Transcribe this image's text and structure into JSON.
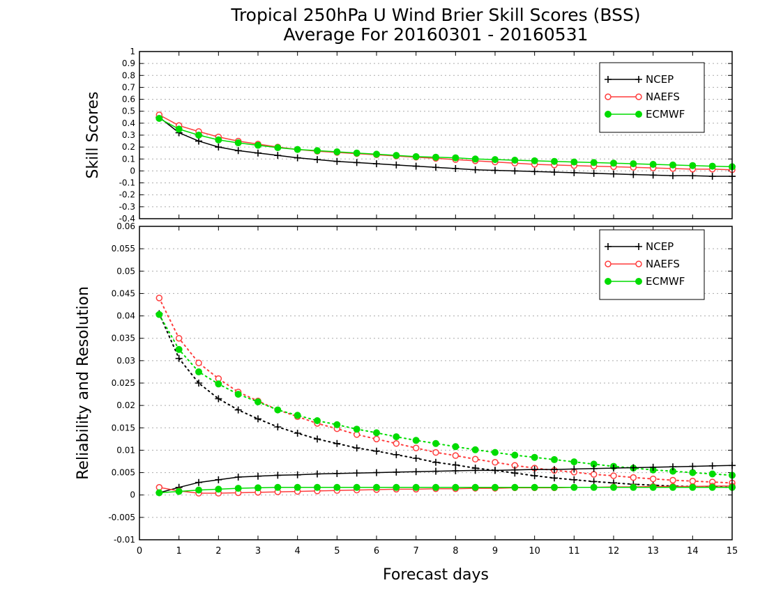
{
  "title_line1": "Tropical 250hPa U Wind Brier Skill Scores (BSS)",
  "title_line2": "Average For 20160301 - 20160531",
  "xlabel": "Forecast days",
  "x_ticks": [
    "0",
    "1",
    "2",
    "3",
    "4",
    "5",
    "6",
    "7",
    "8",
    "9",
    "10",
    "11",
    "12",
    "13",
    "14",
    "15"
  ],
  "colors": {
    "NCEP": "#000000",
    "NAEFS": "#ff3c3c",
    "ECMWF": "#00dc00",
    "grid": "#aaaaaa"
  },
  "chart_data": [
    {
      "type": "line",
      "panel": "top",
      "ylabel": "Skill Scores",
      "xlim": [
        0,
        15
      ],
      "ylim": [
        -0.4,
        1
      ],
      "y_ticks": [
        "1",
        "0.9",
        "0.8",
        "0.7",
        "0.6",
        "0.5",
        "0.4",
        "0.3",
        "0.2",
        "0.1",
        "0",
        "-0.1",
        "-0.2",
        "-0.3",
        "-0.4"
      ],
      "grid": true,
      "legend": "top-right",
      "x": [
        0.5,
        1,
        1.5,
        2,
        2.5,
        3,
        3.5,
        4,
        4.5,
        5,
        5.5,
        6,
        6.5,
        7,
        7.5,
        8,
        8.5,
        9,
        9.5,
        10,
        10.5,
        11,
        11.5,
        12,
        12.5,
        13,
        13.5,
        14,
        14.5,
        15
      ],
      "series": [
        {
          "name": "NCEP",
          "marker": "plus",
          "style": "solid",
          "values": [
            0.45,
            0.32,
            0.25,
            0.2,
            0.17,
            0.15,
            0.13,
            0.11,
            0.095,
            0.08,
            0.07,
            0.06,
            0.05,
            0.04,
            0.03,
            0.02,
            0.01,
            0.005,
            0.0,
            -0.005,
            -0.01,
            -0.015,
            -0.02,
            -0.025,
            -0.03,
            -0.035,
            -0.04,
            -0.04,
            -0.045,
            -0.045
          ]
        },
        {
          "name": "NAEFS",
          "marker": "open-circle",
          "style": "solid",
          "values": [
            0.47,
            0.38,
            0.33,
            0.285,
            0.25,
            0.225,
            0.2,
            0.18,
            0.165,
            0.155,
            0.145,
            0.135,
            0.125,
            0.115,
            0.105,
            0.095,
            0.085,
            0.075,
            0.065,
            0.055,
            0.05,
            0.045,
            0.04,
            0.035,
            0.03,
            0.025,
            0.02,
            0.015,
            0.015,
            0.01
          ]
        },
        {
          "name": "ECMWF",
          "marker": "filled-circle",
          "style": "solid",
          "values": [
            0.44,
            0.35,
            0.3,
            0.26,
            0.235,
            0.215,
            0.195,
            0.18,
            0.17,
            0.16,
            0.15,
            0.14,
            0.13,
            0.12,
            0.115,
            0.11,
            0.1,
            0.095,
            0.09,
            0.085,
            0.08,
            0.075,
            0.07,
            0.065,
            0.06,
            0.055,
            0.05,
            0.045,
            0.04,
            0.035
          ]
        }
      ]
    },
    {
      "type": "line",
      "panel": "bottom",
      "ylabel": "Reliability and Resolution",
      "xlim": [
        0,
        15
      ],
      "ylim": [
        -0.01,
        0.06
      ],
      "y_ticks": [
        "0.06",
        "0.055",
        "0.05",
        "0.045",
        "0.04",
        "0.035",
        "0.03",
        "0.025",
        "0.02",
        "0.015",
        "0.01",
        "0.005",
        "0",
        "-0.005",
        "-0.01"
      ],
      "grid": true,
      "legend": "top-right",
      "x": [
        0.5,
        1,
        1.5,
        2,
        2.5,
        3,
        3.5,
        4,
        4.5,
        5,
        5.5,
        6,
        6.5,
        7,
        7.5,
        8,
        8.5,
        9,
        9.5,
        10,
        10.5,
        11,
        11.5,
        12,
        12.5,
        13,
        13.5,
        14,
        14.5,
        15
      ],
      "series": [
        {
          "name": "NCEP",
          "quantity": "resolution",
          "marker": "plus",
          "style": "dotted",
          "values": [
            0.0405,
            0.0305,
            0.025,
            0.0215,
            0.019,
            0.017,
            0.0152,
            0.0138,
            0.0125,
            0.0115,
            0.0105,
            0.0098,
            0.009,
            0.0082,
            0.0073,
            0.0067,
            0.006,
            0.0055,
            0.0049,
            0.0043,
            0.0038,
            0.0034,
            0.003,
            0.0027,
            0.0024,
            0.0022,
            0.002,
            0.0019,
            0.0018,
            0.0017
          ]
        },
        {
          "name": "NAEFS",
          "quantity": "resolution",
          "marker": "open-circle",
          "style": "dotted",
          "values": [
            0.044,
            0.035,
            0.0295,
            0.026,
            0.023,
            0.021,
            0.019,
            0.0175,
            0.016,
            0.0148,
            0.0135,
            0.0125,
            0.0115,
            0.0105,
            0.0095,
            0.0088,
            0.008,
            0.0073,
            0.0066,
            0.006,
            0.0055,
            0.0051,
            0.0046,
            0.0043,
            0.0039,
            0.0036,
            0.0033,
            0.0031,
            0.0029,
            0.0027
          ]
        },
        {
          "name": "ECMWF",
          "quantity": "resolution",
          "marker": "filled-circle",
          "style": "dotted",
          "values": [
            0.0403,
            0.0325,
            0.0275,
            0.0248,
            0.0225,
            0.0208,
            0.019,
            0.0178,
            0.0166,
            0.0157,
            0.0147,
            0.0139,
            0.013,
            0.0122,
            0.0115,
            0.0108,
            0.0101,
            0.0095,
            0.0089,
            0.0084,
            0.0079,
            0.0074,
            0.0069,
            0.0064,
            0.006,
            0.0056,
            0.0053,
            0.005,
            0.0047,
            0.0044
          ]
        },
        {
          "name": "NCEP",
          "quantity": "reliability",
          "marker": "plus",
          "style": "solid",
          "values": [
            0.0005,
            0.0017,
            0.0028,
            0.0034,
            0.004,
            0.0042,
            0.0044,
            0.0045,
            0.0047,
            0.0048,
            0.0049,
            0.005,
            0.0051,
            0.0052,
            0.0053,
            0.0054,
            0.0055,
            0.0055,
            0.0056,
            0.0057,
            0.0057,
            0.0058,
            0.0059,
            0.006,
            0.0061,
            0.0062,
            0.0063,
            0.0064,
            0.0065,
            0.0066
          ]
        },
        {
          "name": "NAEFS",
          "quantity": "reliability",
          "marker": "open-circle",
          "style": "solid",
          "values": [
            0.0017,
            0.0009,
            0.0004,
            0.0004,
            0.0005,
            0.0006,
            0.0007,
            0.0008,
            0.0009,
            0.001,
            0.0011,
            0.0012,
            0.0013,
            0.0013,
            0.0014,
            0.0014,
            0.0015,
            0.0015,
            0.0016,
            0.0016,
            0.0016,
            0.0017,
            0.0017,
            0.0018,
            0.0018,
            0.0019,
            0.0019,
            0.0019,
            0.002,
            0.002
          ]
        },
        {
          "name": "ECMWF",
          "quantity": "reliability",
          "marker": "filled-circle",
          "style": "solid",
          "values": [
            0.0005,
            0.0008,
            0.0011,
            0.0013,
            0.0015,
            0.0016,
            0.0017,
            0.0017,
            0.0017,
            0.0017,
            0.0017,
            0.0017,
            0.0017,
            0.0017,
            0.0017,
            0.0017,
            0.0017,
            0.0017,
            0.0017,
            0.0017,
            0.0017,
            0.0017,
            0.0017,
            0.0017,
            0.0017,
            0.0017,
            0.0017,
            0.0017,
            0.0017,
            0.0017
          ]
        }
      ]
    }
  ]
}
